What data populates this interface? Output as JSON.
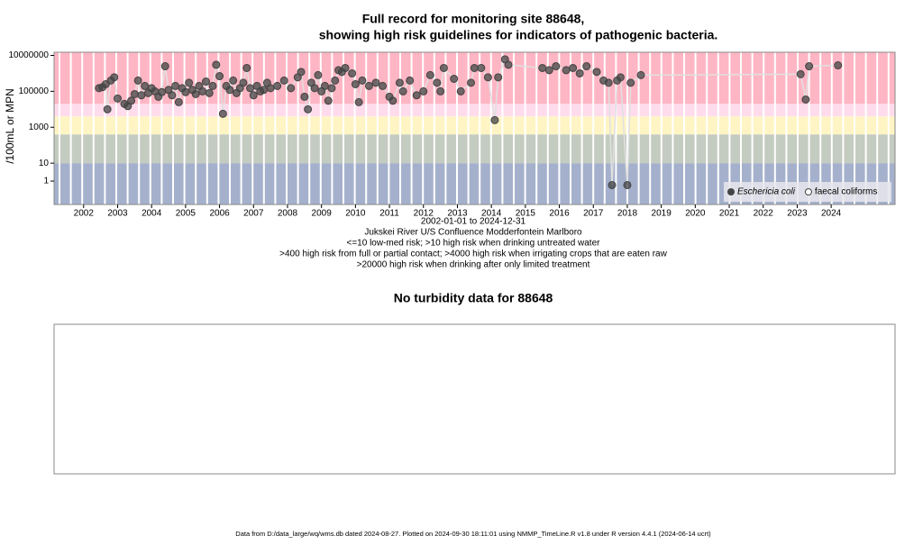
{
  "chart_data": [
    {
      "type": "scatter",
      "title": [
        "Full record for monitoring site 88648,",
        "showing high risk guidelines for indicators of pathogenic bacteria."
      ],
      "xlabel": "2002-01-01 to 2024-12-31",
      "subtitle": [
        "Jukskei River U/S Confluence Modderfontein Marlboro",
        "<=10 low-med risk; >10 high risk when drinking untreated water",
        ">400 high risk from full or partial contact; >4000 high risk when irrigating crops that are eaten raw",
        ">20000 high risk when drinking after only limited treatment"
      ],
      "ylabel": "/100mL or MPN",
      "log_y": true,
      "ylim": [
        0.05,
        15000000
      ],
      "yticks": [
        1,
        10,
        1000,
        100000,
        10000000
      ],
      "xlim": [
        2001.63,
        2026.38
      ],
      "xticks": [
        {
          "value": 2002.5,
          "label": "2002"
        },
        {
          "value": 2003.5,
          "label": "2003"
        },
        {
          "value": 2004.5,
          "label": "2004"
        },
        {
          "value": 2005.5,
          "label": "2005"
        },
        {
          "value": 2006.5,
          "label": "2006"
        },
        {
          "value": 2007.5,
          "label": "2007"
        },
        {
          "value": 2008.5,
          "label": "2008"
        },
        {
          "value": 2009.5,
          "label": "2009"
        },
        {
          "value": 2010.5,
          "label": "2010"
        },
        {
          "value": 2011.5,
          "label": "2011"
        },
        {
          "value": 2012.5,
          "label": "2012"
        },
        {
          "value": 2013.5,
          "label": "2013"
        },
        {
          "value": 2014.5,
          "label": "2014"
        },
        {
          "value": 2015.5,
          "label": "2015"
        },
        {
          "value": 2016.5,
          "label": "2016"
        },
        {
          "value": 2017.5,
          "label": "2017"
        },
        {
          "value": 2018.5,
          "label": "2018"
        },
        {
          "value": 2019.5,
          "label": "2019"
        },
        {
          "value": 2020.5,
          "label": "2020"
        },
        {
          "value": 2021.5,
          "label": "2021"
        },
        {
          "value": 2022.5,
          "label": "2022"
        },
        {
          "value": 2023.5,
          "label": "2023"
        },
        {
          "value": 2024.5,
          "label": "2024"
        }
      ],
      "bands": [
        {
          "color": "#a5b1cc"
        },
        {
          "above": 10,
          "color": "#c4cbc0"
        },
        {
          "above": 400,
          "color": "#fff5c4"
        },
        {
          "above": 4000,
          "color": "#ffdcec"
        },
        {
          "above": 20000,
          "color": "#ffb6c4"
        }
      ],
      "legend": "bottom-right",
      "series": [
        {
          "name": "Eschericia coli",
          "color": "#444444",
          "line_color": "#e0e0e0",
          "marker": "filled",
          "x": [
            2002.95,
            2003.05,
            2003.15,
            2003.2,
            2003.3,
            2003.4,
            2003.5,
            2003.7,
            2003.8,
            2003.9,
            2004.0,
            2004.1,
            2004.2,
            2004.3,
            2004.4,
            2004.5,
            2004.6,
            2004.7,
            2004.8,
            2004.9,
            2005.0,
            2005.1,
            2005.2,
            2005.3,
            2005.4,
            2005.5,
            2005.6,
            2005.7,
            2005.8,
            2005.9,
            2006.0,
            2006.1,
            2006.2,
            2006.3,
            2006.4,
            2006.5,
            2006.6,
            2006.7,
            2006.8,
            2006.9,
            2007.0,
            2007.1,
            2007.2,
            2007.3,
            2007.4,
            2007.5,
            2007.6,
            2007.7,
            2007.8,
            2007.9,
            2008.0,
            2008.2,
            2008.4,
            2008.6,
            2008.8,
            2008.9,
            2009.0,
            2009.1,
            2009.2,
            2009.3,
            2009.4,
            2009.5,
            2009.6,
            2009.7,
            2009.8,
            2009.9,
            2010.0,
            2010.1,
            2010.2,
            2010.4,
            2010.5,
            2010.6,
            2010.7,
            2010.9,
            2011.1,
            2011.3,
            2011.5,
            2011.6,
            2011.8,
            2011.9,
            2012.1,
            2012.3,
            2012.5,
            2012.7,
            2012.9,
            2013.0,
            2013.1,
            2013.4,
            2013.6,
            2013.9,
            2014.0,
            2014.2,
            2014.4,
            2014.6,
            2014.7,
            2014.9,
            2015.0,
            2016.0,
            2016.2,
            2016.4,
            2016.7,
            2016.9,
            2017.1,
            2017.3,
            2017.6,
            2017.8,
            2017.95,
            2018.05,
            2018.2,
            2018.3,
            2018.5,
            2018.6,
            2018.9,
            2023.6,
            2023.75,
            2023.85,
            2024.7
          ],
          "values": [
            150000,
            170000,
            250000,
            10000,
            400000,
            600000,
            40000,
            20000,
            15000,
            30000,
            70000,
            400000,
            60000,
            200000,
            80000,
            150000,
            100000,
            50000,
            90000,
            2500000,
            120000,
            60000,
            200000,
            25000,
            150000,
            90000,
            300000,
            120000,
            70000,
            200000,
            100000,
            350000,
            80000,
            200000,
            3000000,
            700000,
            5600,
            200000,
            120000,
            400000,
            80000,
            150000,
            300000,
            2000000,
            150000,
            60000,
            200000,
            100000,
            120000,
            300000,
            150000,
            200000,
            400000,
            150000,
            600000,
            1200000,
            50000,
            10000,
            300000,
            150000,
            800000,
            100000,
            200000,
            30000,
            150000,
            400000,
            1500000,
            1200000,
            2000000,
            1000000,
            250000,
            25000,
            400000,
            200000,
            300000,
            200000,
            50000,
            30000,
            300000,
            100000,
            400000,
            60000,
            100000,
            800000,
            300000,
            100000,
            2000000,
            500000,
            100000,
            300000,
            2000000,
            2000000,
            600000,
            2500,
            600000,
            6000000,
            3000000,
            2000000,
            1500000,
            2500000,
            1500000,
            2000000,
            1000000,
            2500000,
            1200000,
            400000,
            300000,
            0.6,
            400000,
            600000,
            0.6,
            300000,
            800000,
            900000,
            35000,
            2500000,
            2800000
          ]
        },
        {
          "name": "faecal coliforms",
          "color": "#444444",
          "marker": "open",
          "x": [],
          "values": []
        }
      ],
      "footer": "Data from D:/data_large/wq/wms.db dated 2024-08-27. Plotted on 2024-09-30 18:11:01 using NMMP_TimeLine.R v1.8 under R version 4.4.1 (2024-06-14 ucrt)"
    },
    {
      "type": "empty",
      "title": "No turbidity data for 88648"
    }
  ]
}
